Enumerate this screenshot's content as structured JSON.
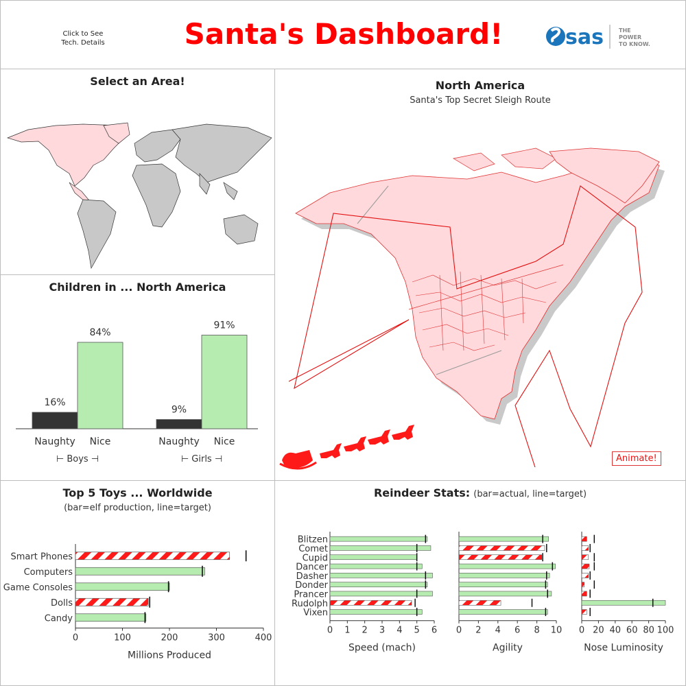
{
  "header": {
    "title": "Santa's Dashboard!",
    "tech_link": "Click to See\nTech. Details",
    "logo_text": "sas",
    "logo_tagline": [
      "THE",
      "POWER",
      "TO KNOW."
    ]
  },
  "colors": {
    "accent": "#ff0000",
    "map_fill": "#ffd9dc",
    "map_gray": "#c8c8c8",
    "bar_green": "#b6ecb0",
    "bar_dark": "#333333",
    "stripe_red": "#ff1a1a"
  },
  "world_panel": {
    "title": "Select an Area!"
  },
  "na_panel": {
    "title": "North America",
    "subtitle": "Santa's Top Secret Sleigh Route",
    "animate_label": "Animate!"
  },
  "children_panel": {
    "title": "Children in ... North America"
  },
  "toys_panel": {
    "title": "Top 5 Toys ... Worldwide",
    "subtitle": "(bar=elf production, line=target)"
  },
  "reindeer_panel": {
    "title": "Reindeer Stats:",
    "subtitle": "(bar=actual, line=target)"
  },
  "chart_data": [
    {
      "type": "bar",
      "title": "Children in ... North America",
      "groups": [
        "Boys",
        "Girls"
      ],
      "categories": [
        "Naughty",
        "Nice"
      ],
      "series": [
        {
          "name": "Boys",
          "values": [
            16,
            84
          ]
        },
        {
          "name": "Girls",
          "values": [
            9,
            91
          ]
        }
      ],
      "value_labels": [
        [
          "16%",
          "84%"
        ],
        [
          "9%",
          "91%"
        ]
      ],
      "ylim": [
        0,
        100
      ]
    },
    {
      "type": "bar",
      "title": "Top 5 Toys ... Worldwide",
      "orientation": "horizontal",
      "categories": [
        "Smart Phones",
        "Computers",
        "Game Consoles",
        "Dolls",
        "Candy"
      ],
      "values": [
        328,
        275,
        200,
        155,
        150
      ],
      "targets": [
        363,
        270,
        198,
        158,
        148
      ],
      "below_target": [
        true,
        false,
        false,
        true,
        false
      ],
      "xlabel": "Millions Produced",
      "xlim": [
        0,
        400
      ],
      "xticks": [
        0,
        100,
        200,
        300,
        400
      ]
    },
    {
      "type": "bar",
      "title": "Reindeer Stats:",
      "orientation": "horizontal",
      "categories": [
        "Blitzen",
        "Comet",
        "Cupid",
        "Dancer",
        "Dasher",
        "Donder",
        "Prancer",
        "Rudolph",
        "Vixen"
      ],
      "panels": [
        {
          "xlabel": "Speed (mach)",
          "xlim": [
            0,
            6
          ],
          "xticks": [
            0,
            1,
            2,
            3,
            4,
            5,
            6
          ],
          "values": [
            5.6,
            5.8,
            5.0,
            5.3,
            5.9,
            5.6,
            5.9,
            4.7,
            5.3
          ],
          "targets": [
            5.5,
            5.0,
            5.0,
            5.0,
            5.5,
            5.5,
            5.0,
            4.9,
            5.0
          ],
          "below_target": [
            false,
            false,
            false,
            false,
            false,
            false,
            false,
            true,
            false
          ]
        },
        {
          "xlabel": "Agility",
          "xlim": [
            0,
            10
          ],
          "xticks": [
            0,
            2,
            4,
            6,
            8,
            10
          ],
          "values": [
            9.2,
            8.8,
            8.5,
            9.9,
            9.3,
            9.1,
            9.5,
            4.3,
            9.1
          ],
          "targets": [
            8.6,
            9.0,
            8.6,
            9.6,
            9.0,
            8.9,
            9.1,
            7.5,
            8.9
          ],
          "below_target": [
            false,
            true,
            true,
            false,
            false,
            false,
            false,
            true,
            false
          ]
        },
        {
          "xlabel": "Nose Luminosity",
          "xlim": [
            0,
            100
          ],
          "xticks": [
            0,
            20,
            40,
            60,
            80,
            100
          ],
          "values": [
            6,
            8,
            8,
            9,
            8,
            3,
            6,
            100,
            6
          ],
          "targets": [
            15,
            10,
            15,
            15,
            10,
            15,
            10,
            85,
            10
          ],
          "below_target": [
            true,
            true,
            true,
            true,
            true,
            true,
            true,
            false,
            true
          ]
        }
      ]
    }
  ]
}
